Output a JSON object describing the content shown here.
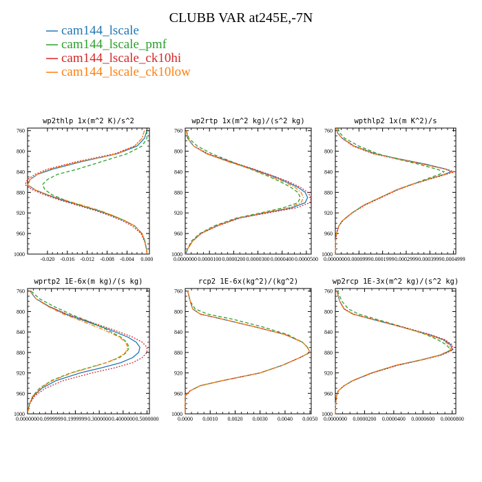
{
  "figure": {
    "title": "CLUBB VAR at245E,-7N"
  },
  "legend": [
    {
      "label": "cam144_lscale",
      "color": "#1f77b4",
      "dash": "solid"
    },
    {
      "label": "cam144_lscale_pmf",
      "color": "#2ca02c",
      "dash": "dashed"
    },
    {
      "label": "cam144_lscale_ck10hi",
      "color": "#d62728",
      "dash": "dotted"
    },
    {
      "label": "cam144_lscale_ck10low",
      "color": "#ff7f0e",
      "dash": "dashdot"
    }
  ],
  "chart_data": [
    {
      "type": "line",
      "title": "wp2thlp   1x(m^2 K)/s^2",
      "ylim": [
        1000,
        755
      ],
      "yticks": [
        "760",
        "800",
        "840",
        "880",
        "920",
        "960",
        "1000"
      ],
      "xlim": [
        -0.024,
        0.0005
      ],
      "xticks": [
        -0.02,
        -0.016,
        -0.012,
        -0.008,
        -0.004,
        0.0
      ],
      "xtick_labels": [
        "-0.020",
        "-0.016",
        "-0.012",
        "-0.008",
        "-0.004",
        "0.000"
      ],
      "y": [
        760,
        775,
        790,
        805,
        820,
        835,
        845,
        855,
        865,
        875,
        885,
        895,
        905,
        915,
        925,
        935,
        945,
        960,
        975,
        990,
        1000
      ],
      "series": [
        {
          "name": "cam144_lscale",
          "values": [
            0.0,
            -0.0005,
            -0.002,
            -0.006,
            -0.013,
            -0.019,
            -0.022,
            -0.0235,
            -0.024,
            -0.0225,
            -0.02,
            -0.017,
            -0.0135,
            -0.01,
            -0.007,
            -0.0045,
            -0.0025,
            -0.001,
            -0.0004,
            -0.0001,
            0.0
          ]
        },
        {
          "name": "cam144_lscale_pmf",
          "values": [
            0.0,
            0.0,
            -0.001,
            -0.004,
            -0.009,
            -0.014,
            -0.018,
            -0.02,
            -0.021,
            -0.0205,
            -0.019,
            -0.0165,
            -0.0135,
            -0.01,
            -0.007,
            -0.0045,
            -0.0025,
            -0.001,
            -0.0004,
            -0.0001,
            0.0
          ]
        },
        {
          "name": "cam144_lscale_ck10hi",
          "values": [
            -0.0005,
            -0.001,
            -0.0025,
            -0.0065,
            -0.014,
            -0.02,
            -0.0225,
            -0.024,
            -0.0245,
            -0.023,
            -0.0205,
            -0.0175,
            -0.014,
            -0.0105,
            -0.0075,
            -0.005,
            -0.003,
            -0.0012,
            -0.0005,
            -0.0001,
            0.0
          ]
        },
        {
          "name": "cam144_lscale_ck10low",
          "values": [
            -0.0005,
            -0.001,
            -0.0025,
            -0.006,
            -0.0135,
            -0.0195,
            -0.022,
            -0.0235,
            -0.024,
            -0.0225,
            -0.0198,
            -0.0165,
            -0.013,
            -0.0095,
            -0.0068,
            -0.0044,
            -0.0025,
            -0.001,
            -0.0004,
            -0.0001,
            0.0
          ]
        }
      ]
    },
    {
      "type": "line",
      "title": "wp2rtp   1x(m^2 kg)/(s^2 kg)",
      "ylim": [
        1000,
        755
      ],
      "yticks": [
        "760",
        "800",
        "840",
        "880",
        "920",
        "960",
        "1000"
      ],
      "xlim": [
        0.0,
        5.2e-05
      ],
      "xticks": [
        0.0,
        1e-05,
        2e-05,
        3e-05,
        4e-05,
        5e-05
      ],
      "xtick_labels": [
        "0.0000000",
        "0.0000100",
        "0.0000200",
        "0.0000300",
        "0.0000400",
        "0.0000500"
      ],
      "y": [
        760,
        775,
        790,
        805,
        820,
        835,
        850,
        860,
        870,
        880,
        890,
        900,
        910,
        920,
        930,
        945,
        960,
        975,
        990,
        1000
      ],
      "series": [
        {
          "name": "cam144_lscale",
          "values": [
            5e-07,
            1e-06,
            3.5e-06,
            9e-06,
            1.8e-05,
            2.8e-05,
            3.7e-05,
            4.2e-05,
            4.65e-05,
            4.95e-05,
            5.05e-05,
            4.95e-05,
            4.4e-05,
            3.3e-05,
            2.2e-05,
            1.3e-05,
            6.5e-06,
            3e-06,
            1e-06,
            2e-07
          ]
        },
        {
          "name": "cam144_lscale_pmf",
          "values": [
            5e-07,
            1.5e-06,
            5e-06,
            1.1e-05,
            1.9e-05,
            2.7e-05,
            3.5e-05,
            3.95e-05,
            4.35e-05,
            4.65e-05,
            4.75e-05,
            4.65e-05,
            4.05e-05,
            3.1e-05,
            2.1e-05,
            1.2e-05,
            6e-06,
            2.5e-06,
            1e-06,
            2e-07
          ]
        },
        {
          "name": "cam144_lscale_ck10hi",
          "values": [
            5e-07,
            1e-06,
            3.5e-06,
            9.5e-06,
            1.85e-05,
            2.85e-05,
            3.75e-05,
            4.3e-05,
            4.75e-05,
            5.05e-05,
            5.2e-05,
            5.15e-05,
            4.6e-05,
            3.4e-05,
            2.25e-05,
            1.35e-05,
            6.5e-06,
            3e-06,
            1e-06,
            2e-07
          ]
        },
        {
          "name": "cam144_lscale_ck10low",
          "values": [
            5e-07,
            1e-06,
            3.5e-06,
            8.8e-06,
            1.75e-05,
            2.72e-05,
            3.58e-05,
            4.1e-05,
            4.52e-05,
            4.78e-05,
            4.88e-05,
            4.78e-05,
            4.28e-05,
            3.2e-05,
            2.15e-05,
            1.28e-05,
            6.3e-06,
            3e-06,
            1e-06,
            2e-07
          ]
        }
      ]
    },
    {
      "type": "line",
      "title": "wpthlp2   1x(m K^2)/s",
      "ylim": [
        1000,
        755
      ],
      "yticks": [
        "760",
        "800",
        "840",
        "880",
        "920",
        "960",
        "1000"
      ],
      "xlim": [
        0.0,
        0.00051
      ],
      "xticks": [
        0.0,
        0.0001,
        0.0002,
        0.0003,
        0.0004,
        0.0005
      ],
      "xtick_labels": [
        "0.0000000",
        "0.0000999",
        "0.0001999",
        "0.0002999",
        "0.0003999",
        "0.0004999"
      ],
      "y": [
        755,
        765,
        775,
        790,
        805,
        815,
        825,
        835,
        840,
        845,
        855,
        865,
        875,
        890,
        905,
        920,
        935,
        945,
        955,
        965,
        975,
        1000
      ],
      "series": [
        {
          "name": "cam144_lscale",
          "values": [
            5e-06,
            1e-05,
            3e-05,
            8e-05,
            0.00017,
            0.00027,
            0.00038,
            0.00047,
            0.00049,
            0.00046,
            0.00039,
            0.00032,
            0.00026,
            0.00019,
            0.00012,
            7e-05,
            3e-05,
            1.5e-05,
            8e-06,
            3e-06,
            1e-06,
            0.0
          ]
        },
        {
          "name": "cam144_lscale_pmf",
          "values": [
            1e-05,
            2e-05,
            4e-05,
            0.0001,
            0.00018,
            0.00026,
            0.00035,
            0.00043,
            0.00046,
            0.00044,
            0.00038,
            0.00032,
            0.00026,
            0.00019,
            0.00012,
            7e-05,
            3e-05,
            1.5e-05,
            8e-06,
            3e-06,
            1e-06,
            0.0
          ]
        },
        {
          "name": "cam144_lscale_ck10hi",
          "values": [
            5e-06,
            1e-05,
            2.8e-05,
            7.5e-05,
            0.00016,
            0.00026,
            0.00037,
            0.00047,
            0.000505,
            0.00047,
            0.000395,
            0.000325,
            0.000265,
            0.000195,
            0.000125,
            7.2e-05,
            3.2e-05,
            1.6e-05,
            8e-06,
            3e-06,
            1e-06,
            0.0
          ]
        },
        {
          "name": "cam144_lscale_ck10low",
          "values": [
            5e-06,
            1e-05,
            3e-05,
            7.8e-05,
            0.000165,
            0.000265,
            0.00037,
            0.000465,
            0.000495,
            0.000465,
            0.00039,
            0.00032,
            0.00026,
            0.00019,
            0.00012,
            7e-05,
            3e-05,
            1.5e-05,
            8e-06,
            3e-06,
            1e-06,
            0.0
          ]
        }
      ]
    },
    {
      "type": "line",
      "title": "wprtp2   1E-6x(m kg)/(s kg)",
      "ylim": [
        1000,
        755
      ],
      "yticks": [
        "760",
        "800",
        "840",
        "880",
        "920",
        "960",
        "1000"
      ],
      "xlim": [
        0.0,
        0.51
      ],
      "xticks": [
        0.0,
        0.1,
        0.2,
        0.3,
        0.4,
        0.5
      ],
      "xtick_labels": [
        "0.0000000",
        "0.0999999",
        "0.1999999",
        "0.3000000",
        "0.4000000",
        "0.5000000"
      ],
      "y": [
        760,
        775,
        790,
        805,
        820,
        835,
        850,
        860,
        870,
        880,
        890,
        900,
        910,
        920,
        935,
        950,
        965,
        980,
        995
      ],
      "series": [
        {
          "name": "cam144_lscale",
          "values": [
            0.01,
            0.035,
            0.09,
            0.16,
            0.25,
            0.34,
            0.42,
            0.455,
            0.47,
            0.465,
            0.44,
            0.39,
            0.31,
            0.22,
            0.12,
            0.06,
            0.025,
            0.008,
            0.002
          ]
        },
        {
          "name": "cam144_lscale_pmf",
          "values": [
            0.015,
            0.05,
            0.11,
            0.18,
            0.26,
            0.33,
            0.39,
            0.415,
            0.425,
            0.415,
            0.385,
            0.33,
            0.255,
            0.18,
            0.1,
            0.05,
            0.022,
            0.008,
            0.002
          ]
        },
        {
          "name": "cam144_lscale_ck10hi",
          "values": [
            0.01,
            0.035,
            0.09,
            0.165,
            0.26,
            0.355,
            0.44,
            0.48,
            0.5,
            0.5,
            0.48,
            0.44,
            0.365,
            0.27,
            0.15,
            0.075,
            0.03,
            0.01,
            0.002
          ]
        },
        {
          "name": "cam144_lscale_ck10low",
          "values": [
            0.01,
            0.035,
            0.085,
            0.15,
            0.235,
            0.315,
            0.385,
            0.41,
            0.42,
            0.41,
            0.38,
            0.33,
            0.26,
            0.185,
            0.105,
            0.053,
            0.022,
            0.008,
            0.002
          ]
        }
      ]
    },
    {
      "type": "line",
      "title": "rcp2   1E-6x(kg^2)/(kg^2)",
      "ylim": [
        1000,
        755
      ],
      "yticks": [
        "760",
        "800",
        "840",
        "880",
        "920",
        "960",
        "1000"
      ],
      "xlim": [
        0.0,
        0.00505
      ],
      "xticks": [
        0.0,
        0.001,
        0.002,
        0.003,
        0.004,
        0.005
      ],
      "xtick_labels": [
        "0.0000",
        "0.0010",
        "0.0020",
        "0.0030",
        "0.0040",
        "0.0050"
      ],
      "y": [
        760,
        780,
        795,
        805,
        815,
        830,
        845,
        860,
        870,
        880,
        890,
        905,
        920,
        935,
        945,
        955,
        965,
        980,
        1000
      ],
      "series": [
        {
          "name": "cam144_lscale",
          "values": [
            0.0001,
            0.0002,
            0.0003,
            0.0006,
            0.0015,
            0.0028,
            0.004,
            0.0047,
            0.0049,
            0.005,
            0.0046,
            0.0039,
            0.003,
            0.0015,
            0.0006,
            0.0002,
            0.0,
            0.0,
            0.0
          ]
        },
        {
          "name": "cam144_lscale_pmf",
          "values": [
            0.0001,
            0.0002,
            0.0004,
            0.0009,
            0.0019,
            0.0031,
            0.0041,
            0.0047,
            0.0049,
            0.005,
            0.0046,
            0.0039,
            0.003,
            0.0015,
            0.0006,
            0.0002,
            0.0,
            0.0,
            0.0
          ]
        },
        {
          "name": "cam144_lscale_ck10hi",
          "values": [
            0.0001,
            0.0002,
            0.0003,
            0.0006,
            0.0015,
            0.0028,
            0.004,
            0.0047,
            0.0049,
            0.005,
            0.0046,
            0.0039,
            0.003,
            0.0015,
            0.0006,
            0.0002,
            0.0,
            0.0,
            0.0
          ]
        },
        {
          "name": "cam144_lscale_ck10low",
          "values": [
            0.0001,
            0.0002,
            0.0003,
            0.0006,
            0.0015,
            0.0028,
            0.004,
            0.0047,
            0.0049,
            0.005,
            0.0046,
            0.0039,
            0.003,
            0.0015,
            0.0006,
            0.0002,
            0.0,
            0.0,
            0.0
          ]
        }
      ]
    },
    {
      "type": "line",
      "title": "wp2rcp   1E-3x(m^2 kg)/(s^2 kg)",
      "ylim": [
        1000,
        755
      ],
      "yticks": [
        "760",
        "800",
        "840",
        "880",
        "920",
        "960",
        "1000"
      ],
      "xlim": [
        0.0,
        8.25e-05
      ],
      "xticks": [
        0.0,
        2e-05,
        4e-05,
        6e-05,
        8e-05
      ],
      "xtick_labels": [
        "0.0000000",
        "0.0000200",
        "0.0000400",
        "0.0000600",
        "0.0000800"
      ],
      "y": [
        760,
        780,
        795,
        805,
        815,
        830,
        845,
        855,
        865,
        875,
        885,
        895,
        905,
        920,
        935,
        945,
        955,
        965,
        980,
        1000
      ],
      "series": [
        {
          "name": "cam144_lscale",
          "values": [
            1e-06,
            3e-06,
            6e-06,
            1.2e-05,
            2.5e-05,
            4.5e-05,
            6.4e-05,
            7.4e-05,
            7.9e-05,
            8e-05,
            7.2e-05,
            5.8e-05,
            4.2e-05,
            2.5e-05,
            1.2e-05,
            6e-06,
            2e-06,
            8e-07,
            2e-07,
            0.0
          ]
        },
        {
          "name": "cam144_lscale_pmf",
          "values": [
            1.5e-06,
            4.5e-06,
            9e-06,
            1.6e-05,
            2.8e-05,
            4.6e-05,
            6.2e-05,
            7e-05,
            7.6e-05,
            7.9e-05,
            7.2e-05,
            5.8e-05,
            4.2e-05,
            2.5e-05,
            1.2e-05,
            6e-06,
            2e-06,
            8e-07,
            2e-07,
            0.0
          ]
        },
        {
          "name": "cam144_lscale_ck10hi",
          "values": [
            1e-06,
            3e-06,
            6.2e-06,
            1.25e-05,
            2.6e-05,
            4.6e-05,
            6.5e-05,
            7.5e-05,
            8e-05,
            8.05e-05,
            7.3e-05,
            5.9e-05,
            4.3e-05,
            2.55e-05,
            1.22e-05,
            6e-06,
            2e-06,
            8e-07,
            2e-07,
            0.0
          ]
        },
        {
          "name": "cam144_lscale_ck10low",
          "values": [
            1e-06,
            3e-06,
            5.8e-06,
            1.18e-05,
            2.5e-05,
            4.5e-05,
            6.3e-05,
            7.3e-05,
            7.8e-05,
            7.9e-05,
            7.15e-05,
            5.8e-05,
            4.15e-05,
            2.45e-05,
            1.18e-05,
            6e-06,
            2e-06,
            8e-07,
            2e-07,
            0.0
          ]
        }
      ]
    }
  ]
}
